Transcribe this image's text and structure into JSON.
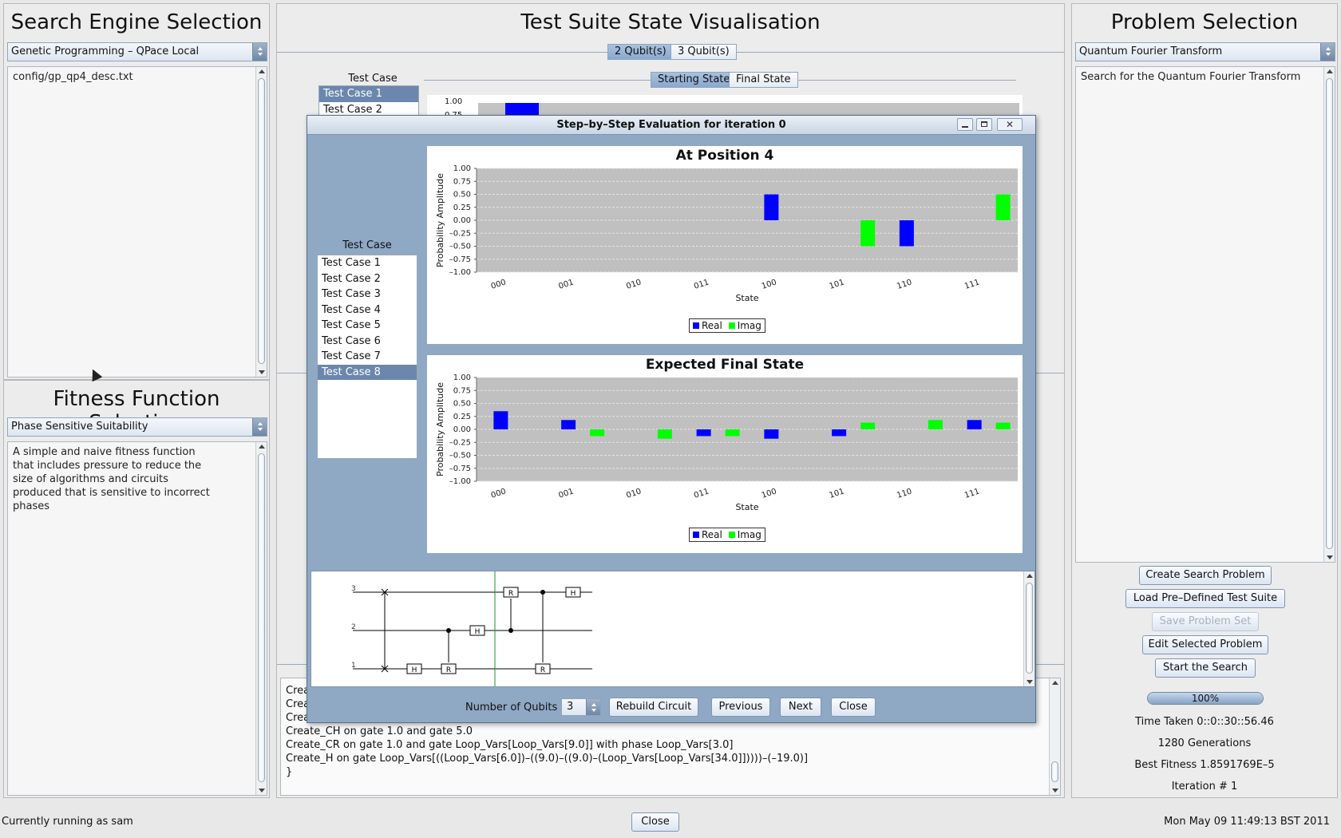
{
  "search_engine": {
    "title": "Search Engine Selection",
    "selected": "Genetic Programming – QPace Local",
    "description": "config/gp_qp4_desc.txt"
  },
  "fitness": {
    "title": "Fitness Function Selection",
    "selected": "Phase Sensitive Suitability",
    "description": "A simple and naive fitness function that includes pressure to reduce the size of algorithms and circuits produced that is sensitive to incorrect phases"
  },
  "visualisation": {
    "title": "Test Suite State Visualisation",
    "qubit_tabs": [
      "2 Qubit(s)",
      "3 Qubit(s)"
    ],
    "state_tabs": [
      "Starting State",
      "Final State"
    ],
    "test_case_header": "Test Case",
    "test_cases": [
      "Test Case 1",
      "Test Case 2"
    ],
    "peek_tick_1": "1.00",
    "peek_tick_2": "0.75"
  },
  "problem": {
    "title": "Problem Selection",
    "selected": "Quantum Fourier Transform",
    "description": "Search for the Quantum Fourier Transform",
    "buttons": [
      "Create Search Problem",
      "Load Pre–Defined Test Suite",
      "Save Problem Set",
      "Edit Selected Problem",
      "Start the Search"
    ],
    "progress": "100%",
    "progress_value": 100,
    "time_taken": "Time Taken 0::0::30::56.46",
    "generations": "1280 Generations",
    "best_fitness": "Best Fitness 1.8591769E–5",
    "iteration": "Iteration # 1"
  },
  "log": {
    "lines": [
      "Crea",
      "Crea",
      "Crea",
      "Create_CH on gate 1.0 and gate 5.0",
      "Create_CR on gate 1.0 and gate Loop_Vars[Loop_Vars[9.0]] with phase Loop_Vars[3.0]",
      "Create_H on gate Loop_Vars[((Loop_Vars[6.0])–((9.0)–((9.0)–(Loop_Vars[Loop_Vars[34.0]]))))–(–19.0)]",
      "}"
    ]
  },
  "dialog": {
    "title": "Step–by–Step Evaluation for iteration 0",
    "test_case_header": "Test Case",
    "test_cases": [
      "Test Case 1",
      "Test Case 2",
      "Test Case 3",
      "Test Case 4",
      "Test Case 5",
      "Test Case 6",
      "Test Case 7",
      "Test Case 8"
    ],
    "selected_test_case": 7,
    "num_qubits_label": "Number of Qubits",
    "num_qubits": "3",
    "buttons": [
      "Rebuild Circuit",
      "Previous",
      "Next",
      "Close"
    ],
    "qubit_labels": [
      "3",
      "2",
      "1"
    ]
  },
  "chart_data": [
    {
      "type": "bar",
      "title": "At Position 4",
      "xlabel": "State",
      "ylabel": "Probability Amplitude",
      "ylim": [
        -1.0,
        1.0
      ],
      "yticks": [
        "1.00",
        "0.75",
        "0.50",
        "0.25",
        "0.00",
        "–0.25",
        "–0.50",
        "–0.75",
        "–1.00"
      ],
      "categories": [
        "000",
        "001",
        "010",
        "011",
        "100",
        "101",
        "110",
        "111"
      ],
      "series": [
        {
          "name": "Real",
          "color": "#0000ff",
          "values": [
            0,
            0,
            0,
            0,
            0.5,
            0,
            -0.5,
            0
          ]
        },
        {
          "name": "Imag",
          "color": "#00ff00",
          "values": [
            0,
            0,
            0,
            0,
            0,
            -0.5,
            0,
            0.5
          ]
        }
      ],
      "legend": "bottom-center",
      "grid": true
    },
    {
      "type": "bar",
      "title": "Expected Final State",
      "xlabel": "State",
      "ylabel": "Probability Amplitude",
      "ylim": [
        -1.0,
        1.0
      ],
      "yticks": [
        "1.00",
        "0.75",
        "0.50",
        "0.25",
        "0.00",
        "–0.25",
        "–0.50",
        "–0.75",
        "–1.00"
      ],
      "categories": [
        "000",
        "001",
        "010",
        "011",
        "100",
        "101",
        "110",
        "111"
      ],
      "series": [
        {
          "name": "Real",
          "color": "#0000ff",
          "values": [
            0.35,
            0.18,
            0,
            -0.13,
            -0.18,
            -0.13,
            0,
            0.18
          ]
        },
        {
          "name": "Imag",
          "color": "#00ff00",
          "values": [
            0,
            -0.13,
            -0.18,
            -0.13,
            0,
            0.13,
            0.18,
            0.13
          ]
        }
      ],
      "legend": "bottom-center",
      "grid": true
    }
  ],
  "status": {
    "user": "Currently running as sam",
    "close": "Close",
    "datetime": "Mon May 09 11:49:13 BST 2011"
  },
  "colors": {
    "dialog_bg": "#8fa8c4",
    "selection": "#6b87ad",
    "real": "#0000ff",
    "imag": "#00ff00"
  }
}
